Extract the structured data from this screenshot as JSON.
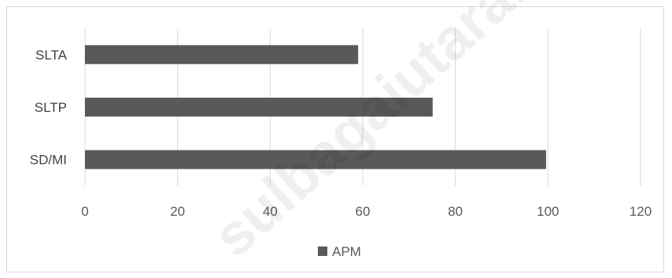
{
  "chart_data": {
    "type": "bar",
    "orientation": "horizontal",
    "categories": [
      "SD/MI",
      "SLTP",
      "SLTA"
    ],
    "series": [
      {
        "name": "APM",
        "values": [
          99.6,
          75.1,
          59.0
        ],
        "color": "#595959"
      }
    ],
    "xlim": [
      0,
      120
    ],
    "x_ticks": [
      0,
      20,
      40,
      60,
      80,
      100,
      120
    ],
    "grid": "vertical",
    "legend": "bottom-center"
  },
  "watermark": {
    "text": "sulbagaiutarakab.bp"
  }
}
